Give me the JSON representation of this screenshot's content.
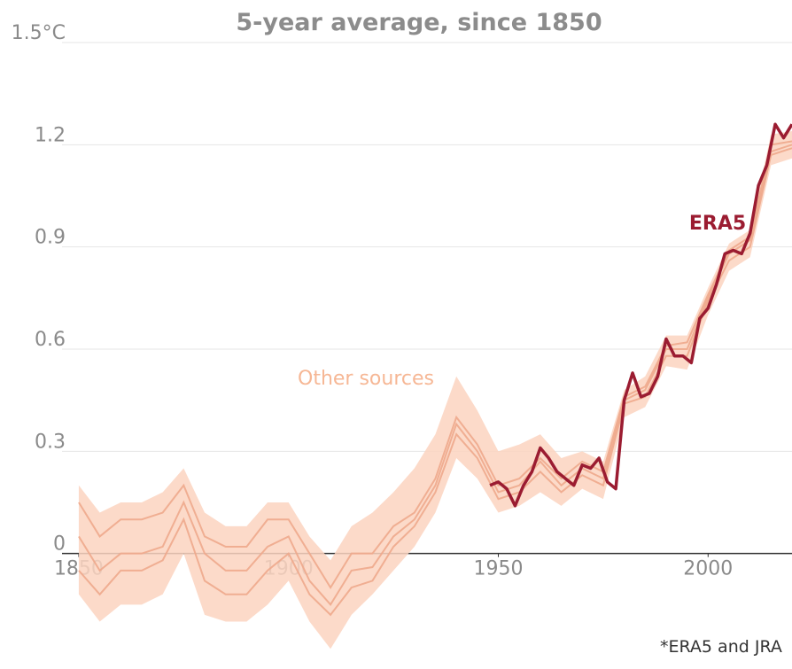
{
  "chart_data": {
    "type": "line",
    "title": "5-year average, since 1850",
    "footnote": "*ERA5 and JRA",
    "xlim": [
      1846,
      2020
    ],
    "xticks": [
      1850,
      1900,
      1950,
      2000
    ],
    "ylim": [
      -0.3,
      1.5
    ],
    "yticks": [
      0,
      0.3,
      0.6,
      0.9,
      1.2,
      {
        "value": 1.5,
        "label": "1.5°C"
      }
    ],
    "grid": true,
    "era5": {
      "name": "ERA5",
      "color": "#9b1c31",
      "x": [
        1948,
        1950,
        1952,
        1954,
        1956,
        1958,
        1960,
        1962,
        1964,
        1966,
        1968,
        1970,
        1972,
        1974,
        1976,
        1978,
        1980,
        1982,
        1984,
        1986,
        1988,
        1990,
        1992,
        1994,
        1996,
        1998,
        2000,
        2002,
        2004,
        2006,
        2008,
        2010,
        2012,
        2014,
        2016,
        2018,
        2020
      ],
      "values": [
        0.2,
        0.21,
        0.19,
        0.14,
        0.2,
        0.24,
        0.31,
        0.28,
        0.24,
        0.22,
        0.2,
        0.26,
        0.25,
        0.28,
        0.21,
        0.19,
        0.45,
        0.53,
        0.46,
        0.47,
        0.52,
        0.63,
        0.58,
        0.58,
        0.56,
        0.69,
        0.72,
        0.79,
        0.88,
        0.89,
        0.88,
        0.94,
        1.08,
        1.14,
        1.26,
        1.22,
        1.26
      ]
    },
    "other_sources": {
      "name": "Other sources",
      "color": "#eea88c",
      "label_color": "#f6b795",
      "band_color": "#fcd3bf",
      "x": [
        1850,
        1855,
        1860,
        1865,
        1870,
        1875,
        1880,
        1885,
        1890,
        1895,
        1900,
        1905,
        1910,
        1915,
        1920,
        1925,
        1930,
        1935,
        1940,
        1945,
        1950,
        1955,
        1960,
        1965,
        1970,
        1975,
        1980,
        1985,
        1990,
        1995,
        2000,
        2005,
        2010,
        2015,
        2020
      ],
      "lines": [
        [
          0.15,
          0.05,
          0.1,
          0.1,
          0.12,
          0.2,
          0.05,
          0.02,
          0.02,
          0.1,
          0.1,
          0.0,
          -0.1,
          0.0,
          0.0,
          0.08,
          0.12,
          0.22,
          0.4,
          0.32,
          0.2,
          0.22,
          0.28,
          0.22,
          0.27,
          0.24,
          0.46,
          0.49,
          0.61,
          0.62,
          0.76,
          0.89,
          0.93,
          1.2,
          1.21
        ],
        [
          0.05,
          -0.05,
          0.0,
          0.0,
          0.02,
          0.15,
          0.0,
          -0.05,
          -0.05,
          0.02,
          0.05,
          -0.08,
          -0.15,
          -0.05,
          -0.04,
          0.05,
          0.1,
          0.2,
          0.38,
          0.3,
          0.18,
          0.2,
          0.27,
          0.2,
          0.25,
          0.22,
          0.45,
          0.48,
          0.6,
          0.6,
          0.75,
          0.88,
          0.92,
          1.18,
          1.2
        ],
        [
          -0.05,
          -0.12,
          -0.05,
          -0.05,
          -0.02,
          0.1,
          -0.08,
          -0.12,
          -0.12,
          -0.05,
          0.0,
          -0.12,
          -0.18,
          -0.1,
          -0.08,
          0.02,
          0.08,
          0.18,
          0.35,
          0.28,
          0.16,
          0.18,
          0.24,
          0.18,
          0.23,
          0.2,
          0.44,
          0.46,
          0.58,
          0.58,
          0.74,
          0.86,
          0.9,
          1.17,
          1.19
        ]
      ],
      "band_upper": [
        0.2,
        0.12,
        0.15,
        0.15,
        0.18,
        0.25,
        0.12,
        0.08,
        0.08,
        0.15,
        0.15,
        0.05,
        -0.02,
        0.08,
        0.12,
        0.18,
        0.25,
        0.35,
        0.52,
        0.42,
        0.3,
        0.32,
        0.35,
        0.28,
        0.3,
        0.27,
        0.48,
        0.52,
        0.64,
        0.64,
        0.78,
        0.91,
        0.95,
        1.23,
        1.24
      ],
      "band_lower": [
        -0.12,
        -0.2,
        -0.15,
        -0.15,
        -0.12,
        0.0,
        -0.18,
        -0.2,
        -0.2,
        -0.15,
        -0.08,
        -0.2,
        -0.28,
        -0.18,
        -0.12,
        -0.05,
        0.02,
        0.12,
        0.28,
        0.22,
        0.12,
        0.14,
        0.18,
        0.14,
        0.19,
        0.16,
        0.4,
        0.43,
        0.55,
        0.54,
        0.7,
        0.83,
        0.87,
        1.14,
        1.16
      ]
    }
  }
}
